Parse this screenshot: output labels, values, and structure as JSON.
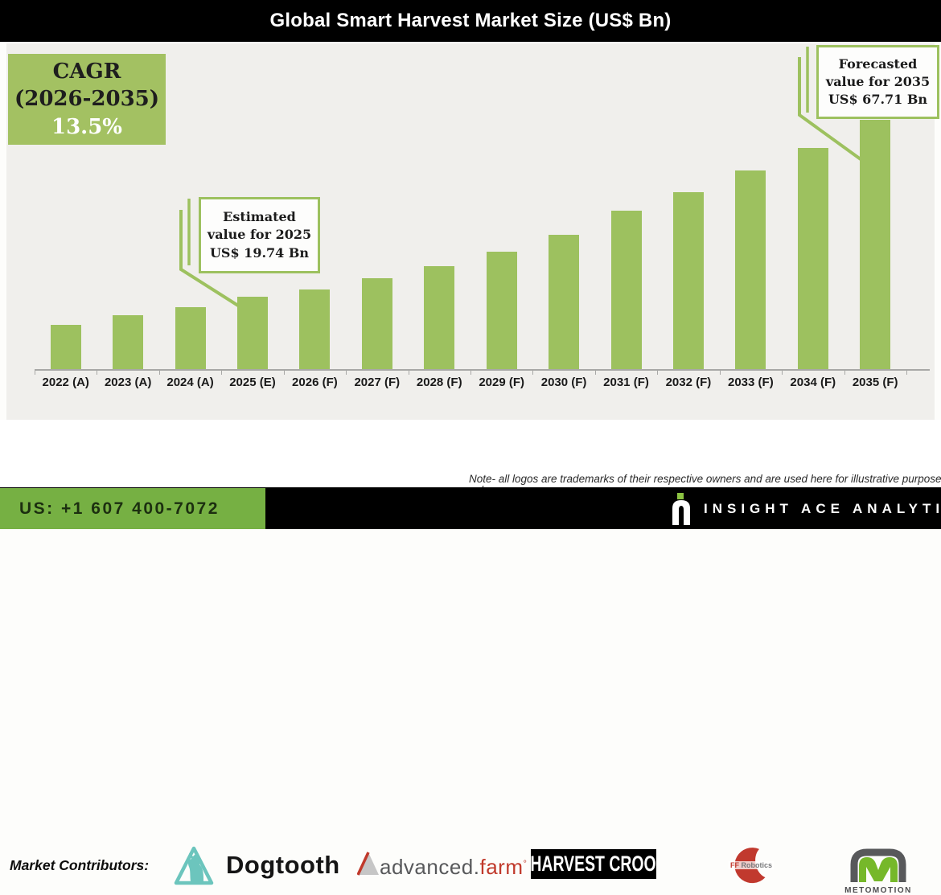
{
  "title": "Global Smart Harvest Market Size (US$ Bn)",
  "cagr_box": {
    "line1": "CAGR",
    "line2": "(2026-2035)",
    "line3": "13.5%"
  },
  "callouts": {
    "estimated": {
      "lines": [
        "Estimated",
        "value for 2025",
        "US$ 19.74 Bn"
      ]
    },
    "forecasted": {
      "lines": [
        "Forecasted",
        "value for 2035",
        "US$ 67.71 Bn"
      ]
    }
  },
  "chart_data": {
    "type": "bar",
    "title": "Global Smart Harvest Market Size (US$ Bn)",
    "unit": "US$ Bn",
    "categories": [
      "2022 (A)",
      "2023 (A)",
      "2024 (A)",
      "2025 (E)",
      "2026 (F)",
      "2027 (F)",
      "2028 (F)",
      "2029 (F)",
      "2030 (F)",
      "2031 (F)",
      "2032 (F)",
      "2033 (F)",
      "2034 (F)",
      "2035 (F)"
    ],
    "values": [
      12.0,
      14.6,
      16.8,
      19.74,
      21.7,
      24.6,
      28.0,
      31.8,
      36.5,
      43.0,
      48.0,
      54.0,
      60.0,
      67.71
    ],
    "bar_color": "#9dc15f",
    "ylim": [
      0,
      72
    ],
    "grid": false,
    "legend": false,
    "annotations": [
      {
        "target": "2025 (E)",
        "text": "Estimated value for 2025 US$ 19.74 Bn"
      },
      {
        "target": "2035 (F)",
        "text": "Forecasted value for 2035 US$ 67.71 Bn"
      },
      {
        "text": "CAGR (2026-2035) 13.5%"
      }
    ]
  },
  "contributors": {
    "label": "Market Contributors:",
    "logos": {
      "dogtooth": {
        "name": "Dogtooth"
      },
      "advancedfarm": {
        "part1": "advanced.",
        "part2": "farm",
        "tm": "°"
      },
      "harvestcroo": {
        "name": "HARVEST CROO"
      },
      "ffrobotics": {
        "part1": "FF",
        "part2": "Robotics"
      },
      "metomotion": {
        "name": "METOMOTION"
      }
    },
    "note_line1": "Note- all logos are trademarks of their respective owners and are used here for illustrative purposes",
    "note_line2": "only."
  },
  "footer": {
    "phone": "US: +1 607 400-7072",
    "brand": "INSIGHT ACE ANALYTIC"
  },
  "colors": {
    "bar_green": "#9dc15f",
    "cagr_green": "#a3c162",
    "footer_green": "#76b043",
    "panel_gray": "#f0efec",
    "title_black": "#000000",
    "dogtooth_teal": "#6cc5bd",
    "advfarm_red": "#c0392b",
    "metomotion_lime": "#76b82a"
  }
}
